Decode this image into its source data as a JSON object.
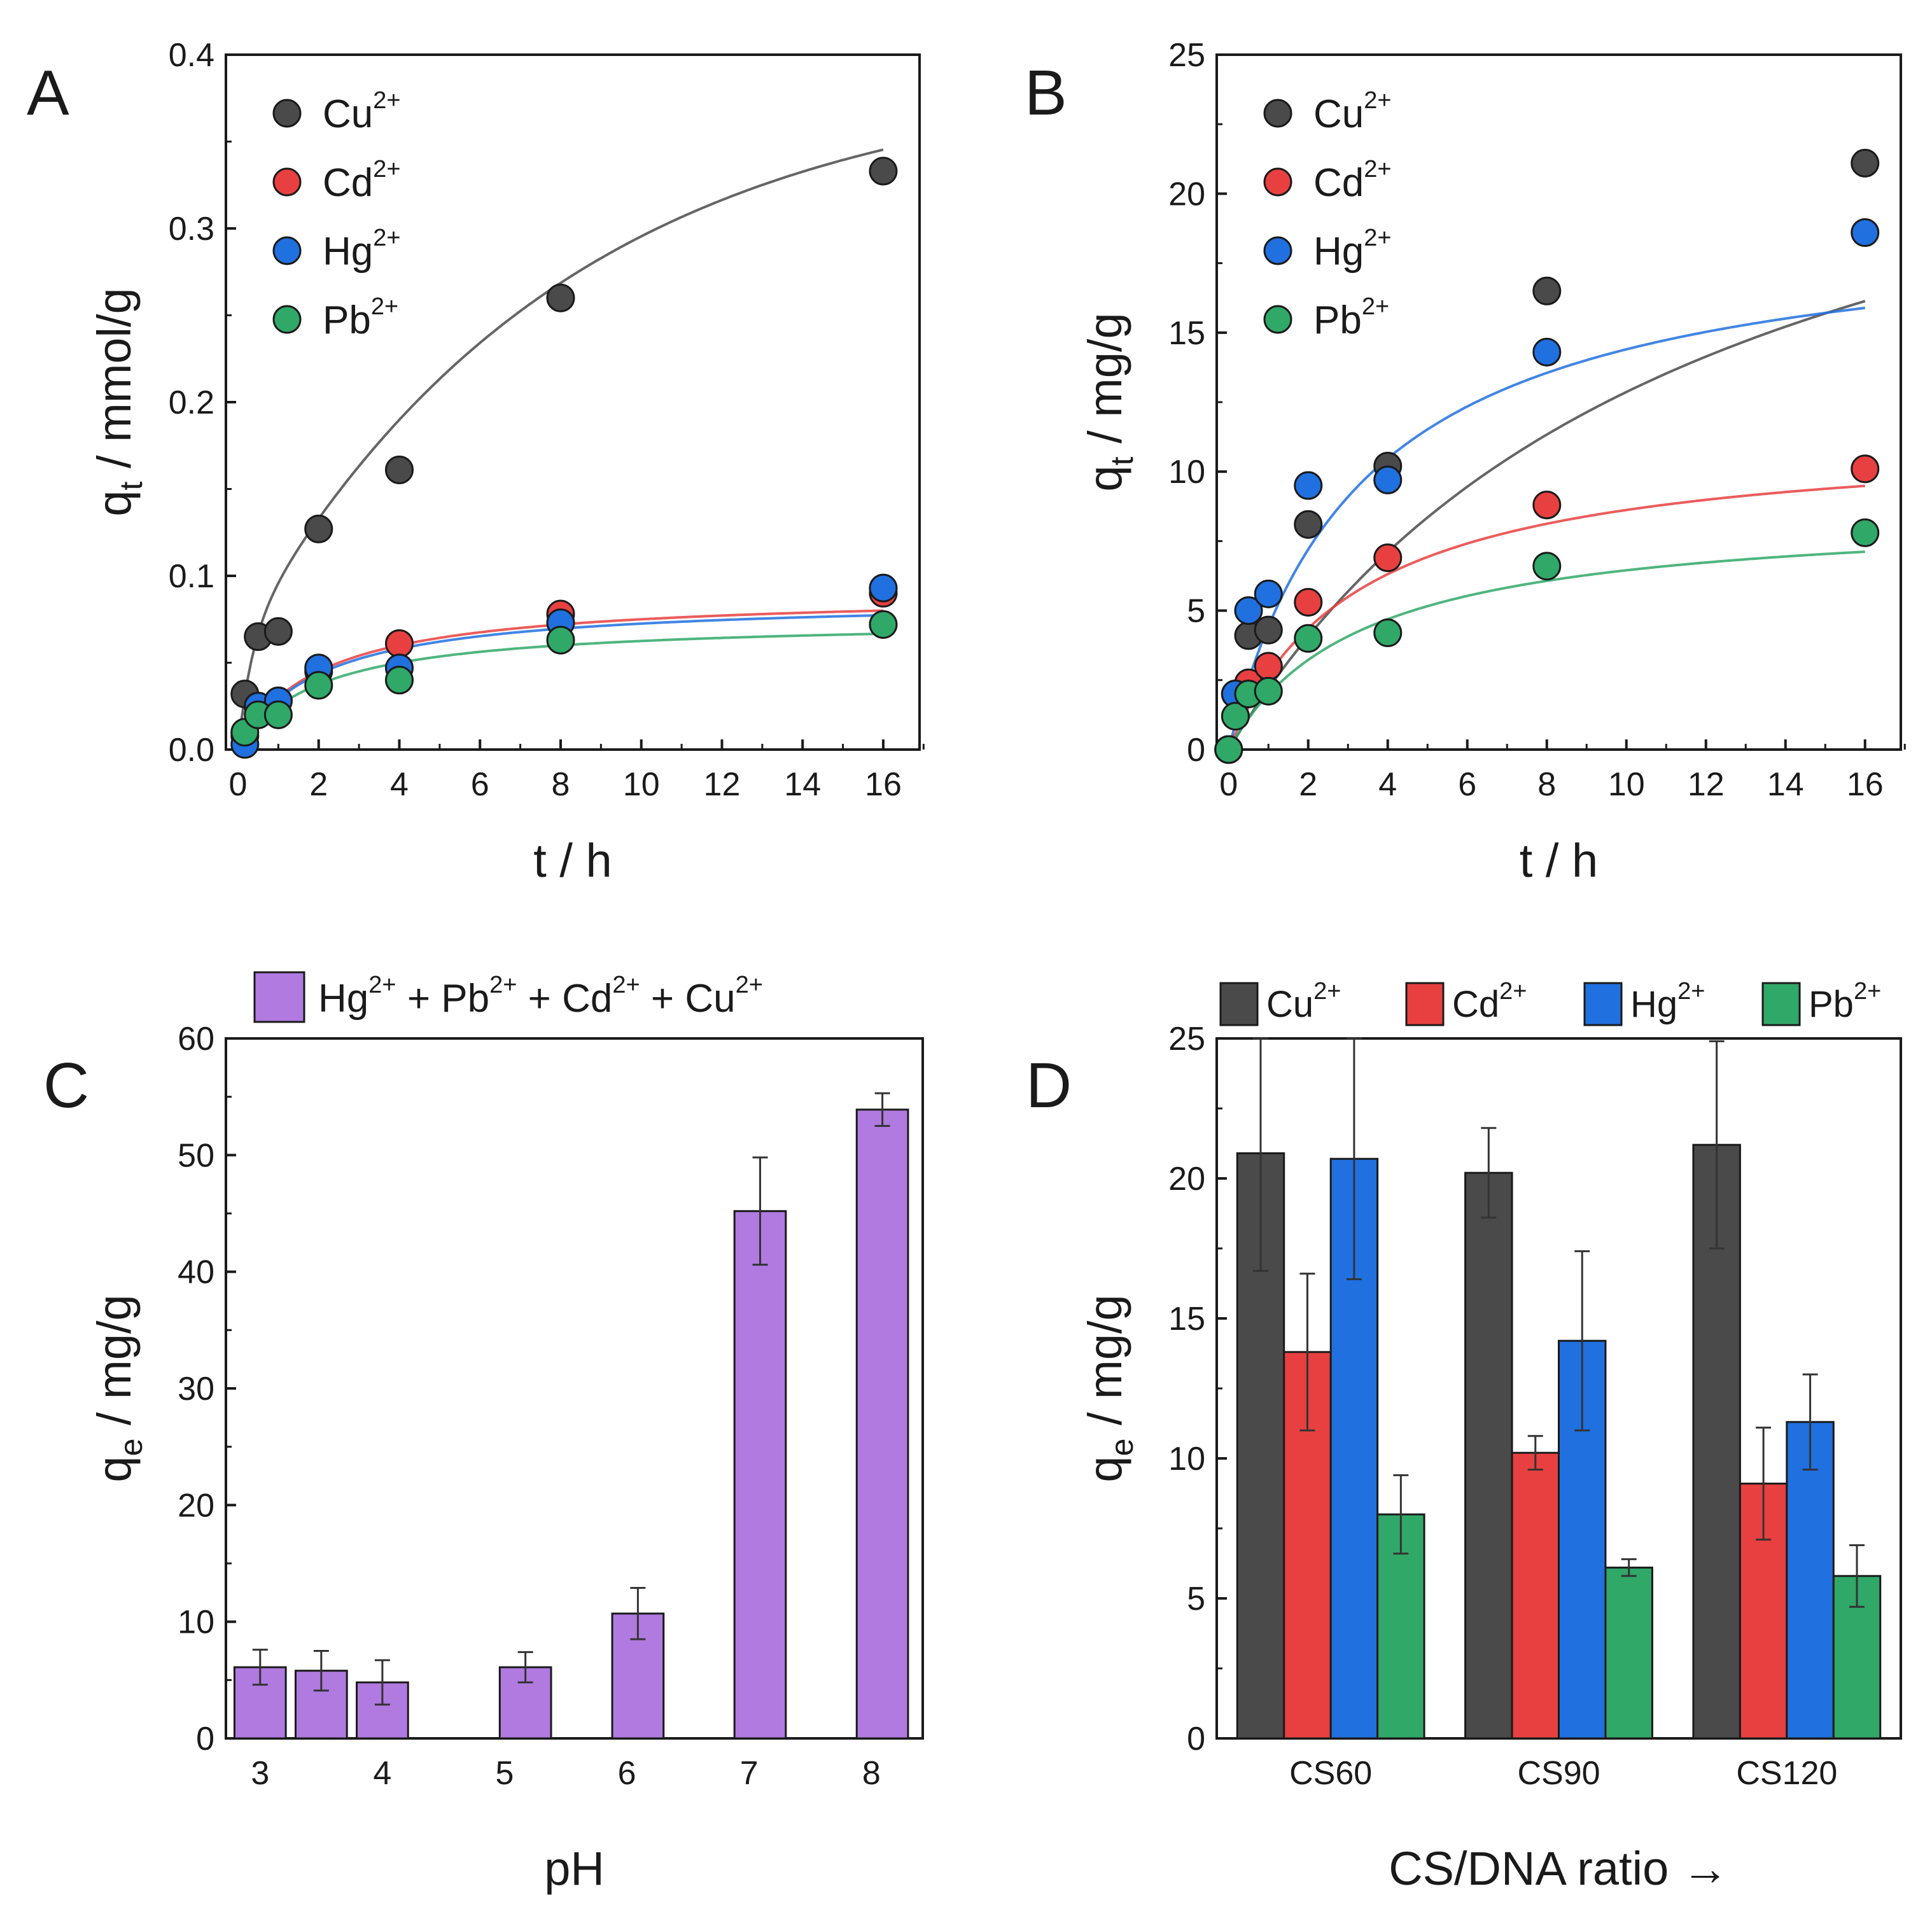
{
  "chart_data": [
    {
      "panel": "A",
      "type": "scatter",
      "xlabel": "t / h",
      "ylabel_main": "q",
      "ylabel_sub": "t",
      "ylabel_unit": " / mmol/g",
      "xlim": [
        -0.3,
        16.9
      ],
      "ylim": [
        0,
        0.4
      ],
      "xticks": [
        "0",
        "2",
        "4",
        "6",
        "8",
        "10",
        "12",
        "14",
        "16"
      ],
      "yticks": [
        "0.0",
        "0.1",
        "0.2",
        "0.3",
        "0.4"
      ],
      "x": [
        0.17,
        0.5,
        1,
        2,
        4,
        8,
        16
      ],
      "series": [
        {
          "name": "Cu",
          "charge": "2+",
          "color": "#4a4a4a",
          "values": [
            0.032,
            0.065,
            0.068,
            0.127,
            0.161,
            0.26,
            0.333
          ],
          "fit": {
            "qmax": 0.33,
            "k": 0.125,
            "extra": 0.06
          }
        },
        {
          "name": "Cd",
          "charge": "2+",
          "color": "#e84040",
          "values": [
            0.008,
            0.025,
            0.028,
            0.045,
            0.061,
            0.078,
            0.09
          ],
          "fit": {
            "qmax": 0.09,
            "k": 0.5
          }
        },
        {
          "name": "Hg",
          "charge": "2+",
          "color": "#2070e0",
          "values": [
            0.003,
            0.025,
            0.028,
            0.047,
            0.047,
            0.073,
            0.093
          ],
          "fit": {
            "qmax": 0.087,
            "k": 0.5
          }
        },
        {
          "name": "Pb",
          "charge": "2+",
          "color": "#30a868",
          "values": [
            0.01,
            0.02,
            0.02,
            0.037,
            0.04,
            0.063,
            0.072
          ],
          "fit": {
            "qmax": 0.075,
            "k": 0.5
          }
        }
      ]
    },
    {
      "panel": "B",
      "type": "scatter",
      "xlabel": "t / h",
      "ylabel_main": "q",
      "ylabel_sub": "t",
      "ylabel_unit": " / mg/g",
      "xlim": [
        -0.3,
        16.9
      ],
      "ylim": [
        0,
        25
      ],
      "xticks": [
        "0",
        "2",
        "4",
        "6",
        "8",
        "10",
        "12",
        "14",
        "16"
      ],
      "yticks": [
        "0",
        "5",
        "10",
        "15",
        "20",
        "25"
      ],
      "x": [
        0,
        0.17,
        0.5,
        1,
        2,
        4,
        8,
        16
      ],
      "series": [
        {
          "name": "Cu",
          "charge": "2+",
          "color": "#4a4a4a",
          "values": [
            0,
            2.0,
            4.1,
            4.3,
            8.1,
            10.2,
            16.5,
            21.1
          ],
          "fit": {
            "qmax": 28,
            "k": 0.085
          }
        },
        {
          "name": "Cd",
          "charge": "2+",
          "color": "#e84040",
          "values": [
            0,
            2.0,
            2.4,
            3.0,
            5.3,
            6.9,
            8.8,
            10.1
          ],
          "fit": {
            "qmax": 11.4,
            "k": 0.31
          }
        },
        {
          "name": "Hg",
          "charge": "2+",
          "color": "#2070e0",
          "values": [
            0,
            2.0,
            5.0,
            5.6,
            9.5,
            9.7,
            14.3,
            18.6
          ],
          "fit": {
            "qmax": 19.2,
            "k": 0.3
          }
        },
        {
          "name": "Pb",
          "charge": "2+",
          "color": "#30a868",
          "values": [
            0,
            1.2,
            2.0,
            2.1,
            4.0,
            4.2,
            6.6,
            7.8
          ],
          "fit": {
            "qmax": 8.6,
            "k": 0.3
          }
        }
      ]
    },
    {
      "panel": "C",
      "type": "bar",
      "xlabel": "pH",
      "ylabel_main": "q",
      "ylabel_sub": "e",
      "ylabel_unit": " / mg/g",
      "ylim": [
        0,
        60
      ],
      "yticks": [
        "0",
        "10",
        "20",
        "30",
        "40",
        "50",
        "60"
      ],
      "xtick_labels": [
        "3",
        "4",
        "5",
        "6",
        "7",
        "8"
      ],
      "xtick_pos": [
        3,
        4,
        5,
        6,
        7,
        8
      ],
      "xlim": [
        2.55,
        8.25
      ],
      "legend": {
        "color": "#b07ae0",
        "parts": [
          [
            "Hg",
            "2+"
          ],
          [
            "Pb",
            "2+"
          ],
          [
            "Cd",
            "2+"
          ],
          [
            "Cu",
            "2+"
          ]
        ]
      },
      "bars": [
        {
          "x": 2.83,
          "value": 6.1,
          "err": 1.5
        },
        {
          "x": 3.33,
          "value": 5.8,
          "err": 1.7
        },
        {
          "x": 3.83,
          "value": 4.8,
          "err": 1.9
        },
        {
          "x": 5.0,
          "value": 6.1,
          "err": 1.3
        },
        {
          "x": 5.92,
          "value": 10.7,
          "err": 2.2
        },
        {
          "x": 6.92,
          "value": 45.2,
          "err": 4.6
        },
        {
          "x": 7.92,
          "value": 53.9,
          "err": 1.4
        }
      ],
      "color": "#b07ae0"
    },
    {
      "panel": "D",
      "type": "bar",
      "xlabel": "CS/DNA ratio →",
      "ylabel_main": "q",
      "ylabel_sub": "e",
      "ylabel_unit": " / mg/g",
      "ylim": [
        0,
        25
      ],
      "yticks": [
        "0",
        "5",
        "10",
        "15",
        "20",
        "25"
      ],
      "categories": [
        "CS60",
        "CS90",
        "CS120"
      ],
      "series": [
        {
          "name": "Cu",
          "charge": "2+",
          "color": "#4a4a4a",
          "values": [
            20.9,
            20.2,
            21.2
          ],
          "errors": [
            4.2,
            1.6,
            3.7
          ]
        },
        {
          "name": "Cd",
          "charge": "2+",
          "color": "#e84040",
          "values": [
            13.8,
            10.2,
            9.1
          ],
          "errors": [
            2.8,
            0.6,
            2.0
          ]
        },
        {
          "name": "Hg",
          "charge": "2+",
          "color": "#2070e0",
          "values": [
            20.7,
            14.2,
            11.3
          ],
          "errors": [
            4.3,
            3.2,
            1.7
          ]
        },
        {
          "name": "Pb",
          "charge": "2+",
          "color": "#30a868",
          "values": [
            8.0,
            6.1,
            5.8
          ],
          "errors": [
            1.4,
            0.3,
            1.1
          ]
        }
      ]
    }
  ]
}
